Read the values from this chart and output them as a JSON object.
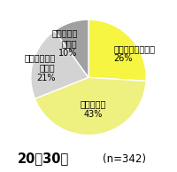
{
  "slices": [
    26,
    43,
    21,
    10
  ],
  "colors": [
    "#f5f542",
    "#eef080",
    "#d3d3d3",
    "#a0a0a0"
  ],
  "startangle": 90,
  "counterclock": false,
  "label_texts": [
    "かなりできている\n26%",
    "できている\n43%",
    "あまりできて\nいない\n21%",
    "全くできて\nいない\n10%"
  ],
  "label_r": [
    0.6,
    0.55,
    0.6,
    0.62
  ],
  "subtitle": "20～30代",
  "n_label": "(n=342)",
  "label_fontsize": 7.0,
  "subtitle_fontsize": 10.5,
  "n_fontsize": 8.5,
  "background_color": "#ffffff",
  "edge_color": "#ffffff",
  "edge_width": 1.0
}
